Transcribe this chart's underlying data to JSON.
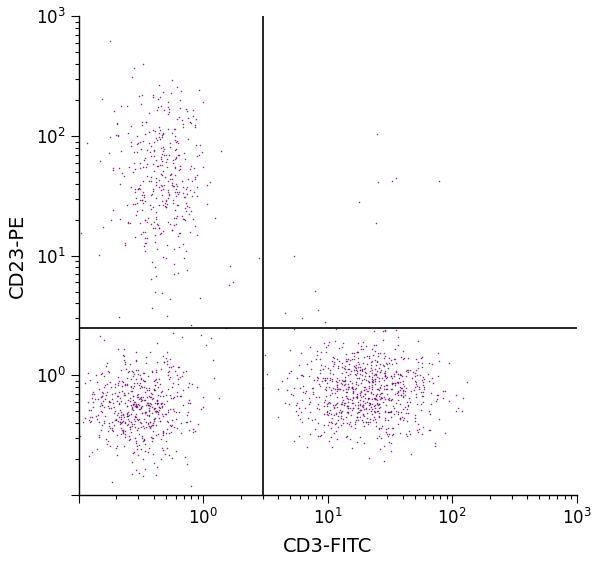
{
  "xlabel": "CD3-FITC",
  "ylabel": "CD23-PE",
  "xmin": 0.1,
  "xmax": 1000,
  "ymin": 0.1,
  "ymax": 1000,
  "gate_x": 3.0,
  "gate_y": 2.5,
  "dot_color": "#7B007B",
  "dot_alpha": 0.85,
  "dot_size": 1.2,
  "background_color": "#ffffff",
  "populations": {
    "lower_left": {
      "n": 550,
      "x_center_log": -0.5,
      "y_center_log": -0.25,
      "x_spread": 0.22,
      "y_spread": 0.22
    },
    "upper_left": {
      "n": 380,
      "x_center_log": -0.35,
      "y_center_log": 1.65,
      "x_spread": 0.18,
      "y_spread": 0.38
    },
    "lower_right": {
      "n": 800,
      "x_center_log": 1.3,
      "y_center_log": -0.15,
      "x_spread": 0.28,
      "y_spread": 0.22
    },
    "upper_right_sparse": {
      "n": 6,
      "x_center_log": 1.5,
      "y_center_log": 1.55,
      "x_spread": 0.25,
      "y_spread": 0.25
    },
    "mid_right_sparse": {
      "n": 4,
      "x_center_log": 1.1,
      "y_center_log": 0.85,
      "x_spread": 0.2,
      "y_spread": 0.25
    },
    "upper_left_scatter": {
      "n": 15,
      "x_center_log": 0.1,
      "y_center_log": 0.7,
      "x_spread": 0.3,
      "y_spread": 0.3
    }
  },
  "axis_label_fontsize": 14,
  "tick_fontsize": 12
}
